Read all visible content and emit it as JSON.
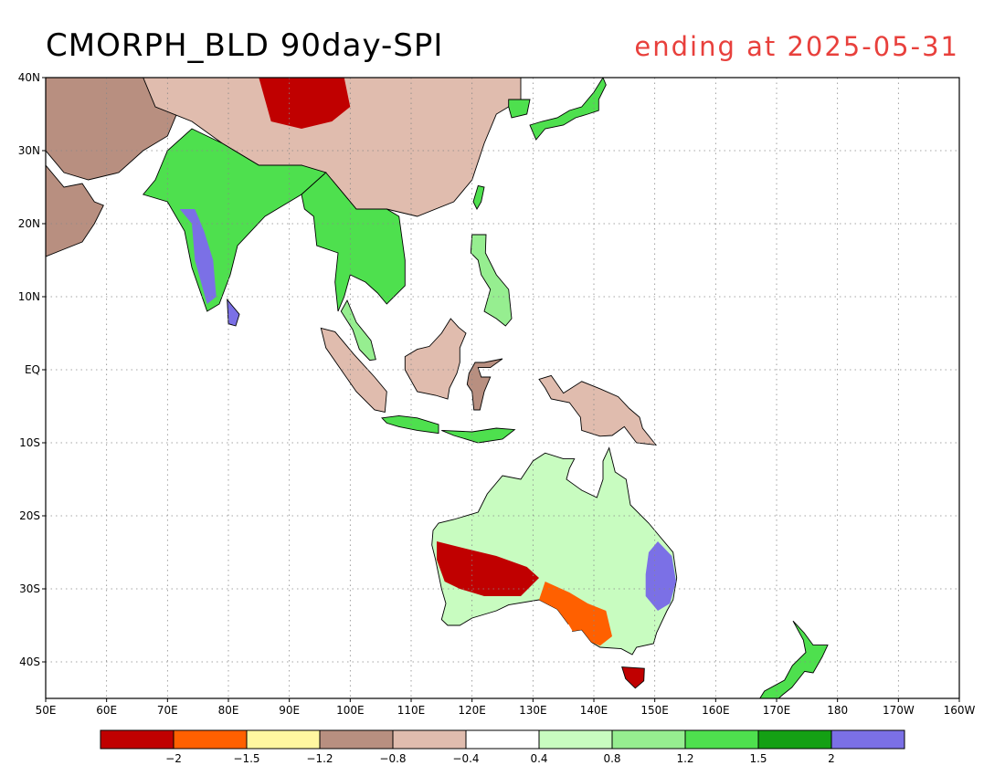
{
  "title": "CMORPH_BLD 90day-SPI",
  "subtitle": "ending at 2025-05-31",
  "map": {
    "projection": "lat-lon",
    "lon_range": [
      50,
      200
    ],
    "lat_range": [
      -45,
      40
    ],
    "lat_ticks": [
      {
        "value": 40,
        "label": "40N"
      },
      {
        "value": 30,
        "label": "30N"
      },
      {
        "value": 20,
        "label": "20N"
      },
      {
        "value": 10,
        "label": "10N"
      },
      {
        "value": 0,
        "label": "EQ"
      },
      {
        "value": -10,
        "label": "10S"
      },
      {
        "value": -20,
        "label": "20S"
      },
      {
        "value": -30,
        "label": "30S"
      },
      {
        "value": -40,
        "label": "40S"
      }
    ],
    "lon_ticks": [
      {
        "value": 50,
        "label": "50E"
      },
      {
        "value": 60,
        "label": "60E"
      },
      {
        "value": 70,
        "label": "70E"
      },
      {
        "value": 80,
        "label": "80E"
      },
      {
        "value": 90,
        "label": "90E"
      },
      {
        "value": 100,
        "label": "100E"
      },
      {
        "value": 110,
        "label": "110E"
      },
      {
        "value": 120,
        "label": "120E"
      },
      {
        "value": 130,
        "label": "130E"
      },
      {
        "value": 140,
        "label": "140E"
      },
      {
        "value": 150,
        "label": "150E"
      },
      {
        "value": 160,
        "label": "160E"
      },
      {
        "value": 170,
        "label": "170E"
      },
      {
        "value": 180,
        "label": "180"
      },
      {
        "value": 190,
        "label": "170W"
      },
      {
        "value": 200,
        "label": "160W"
      }
    ],
    "grid": "dotted"
  },
  "colorbar": {
    "colors": [
      "#c00000",
      "#ff6000",
      "#fff7a0",
      "#b88f80",
      "#e0bcae",
      "#ffffff",
      "#c8fcc0",
      "#96ee90",
      "#4ee04e",
      "#14a014",
      "#7b70e6"
    ],
    "labels": [
      "−2",
      "−1.5",
      "−1.2",
      "−0.8",
      "−0.4",
      "0.4",
      "0.8",
      "1.2",
      "1.5",
      "2"
    ]
  },
  "regions": [
    {
      "name": "arabia",
      "fill": "#b88f80"
    },
    {
      "name": "iran-afghan",
      "fill": "#b88f80"
    },
    {
      "name": "china",
      "fill": "#e0bcae"
    },
    {
      "name": "china-dry-core",
      "fill": "#c00000"
    },
    {
      "name": "india",
      "fill": "#4ee04e"
    },
    {
      "name": "india-west-wet",
      "fill": "#7b70e6"
    },
    {
      "name": "sri-lanka",
      "fill": "#7b70e6"
    },
    {
      "name": "indochina",
      "fill": "#4ee04e"
    },
    {
      "name": "korea-japan",
      "fill": "#4ee04e"
    },
    {
      "name": "taiwan",
      "fill": "#4ee04e"
    },
    {
      "name": "philippines",
      "fill": "#96ee90"
    },
    {
      "name": "malay-peninsula",
      "fill": "#96ee90"
    },
    {
      "name": "sumatra",
      "fill": "#e0bcae"
    },
    {
      "name": "java",
      "fill": "#4ee04e"
    },
    {
      "name": "borneo",
      "fill": "#e0bcae"
    },
    {
      "name": "sulawesi",
      "fill": "#b88f80"
    },
    {
      "name": "new-guinea",
      "fill": "#e0bcae"
    },
    {
      "name": "australia",
      "fill": "#c8fcc0"
    },
    {
      "name": "australia-wa-dry",
      "fill": "#c00000"
    },
    {
      "name": "australia-se-dry",
      "fill": "#ff6000"
    },
    {
      "name": "australia-east-wet",
      "fill": "#7b70e6"
    },
    {
      "name": "tasmania",
      "fill": "#c00000"
    },
    {
      "name": "new-zealand",
      "fill": "#4ee04e"
    }
  ]
}
